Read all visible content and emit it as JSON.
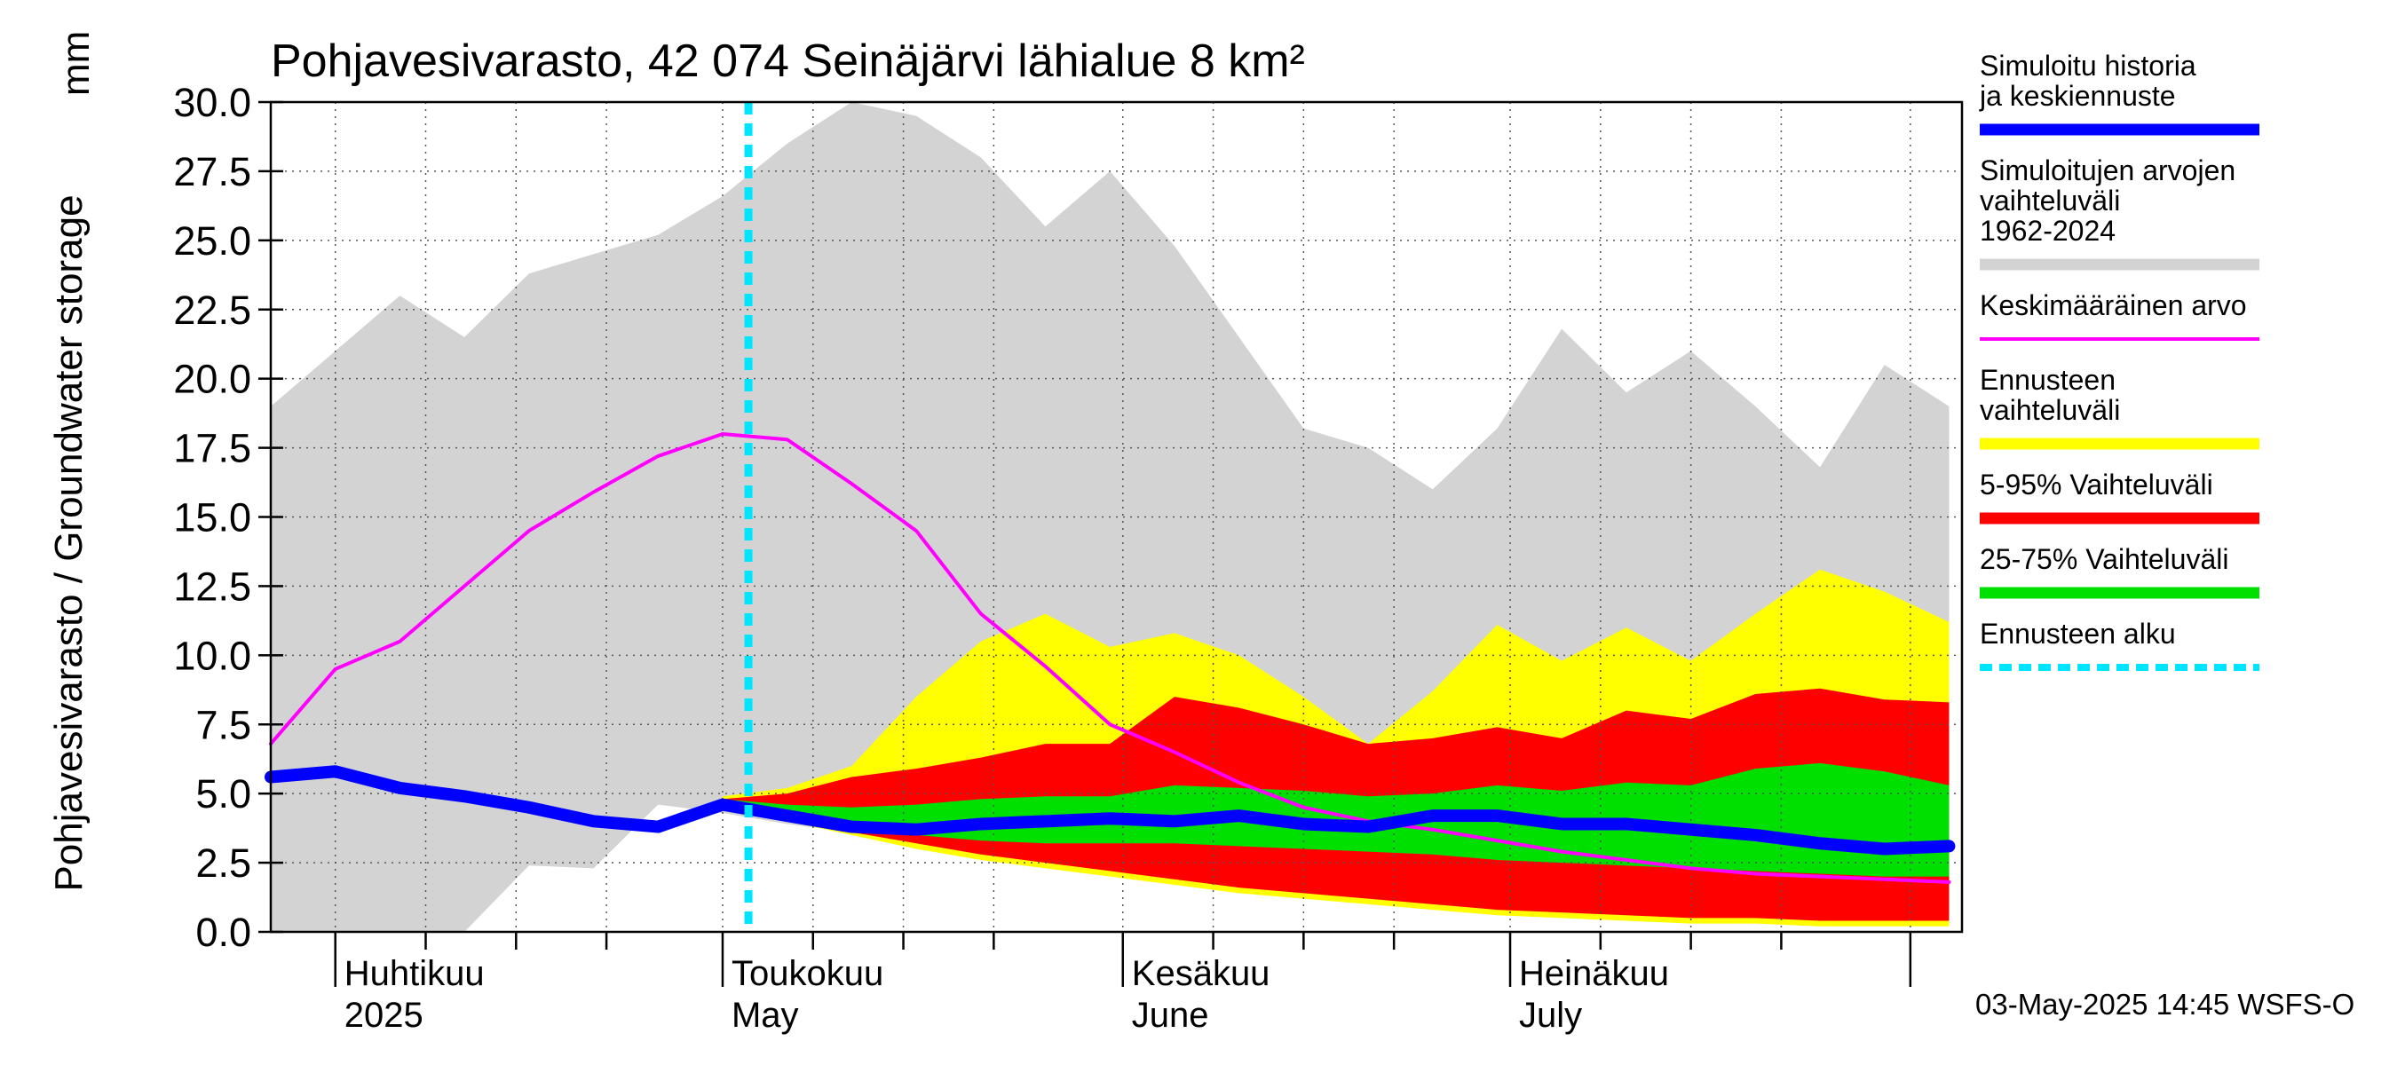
{
  "chart_data": {
    "type": "area",
    "title": "Pohjavesivarasto, 42 074 Seinäjärvi lähialue 8 km²",
    "unit": "mm",
    "ylabel": "Pohjavesivarasto / Groundwater storage",
    "ylim": [
      0,
      30
    ],
    "yticks": [
      "0.0",
      "2.5",
      "5.0",
      "7.5",
      "10.0",
      "12.5",
      "15.0",
      "17.5",
      "20.0",
      "22.5",
      "25.0",
      "27.5",
      "30.0"
    ],
    "xlim": [
      "2025-03-27",
      "2025-08-05"
    ],
    "month_labels": [
      {
        "fi": "Huhtikuu",
        "en": "2025",
        "date": "2025-04-01"
      },
      {
        "fi": "Toukokuu",
        "en": "May",
        "date": "2025-05-01"
      },
      {
        "fi": "Kesäkuu",
        "en": "June",
        "date": "2025-06-01"
      },
      {
        "fi": "Heinäkuu",
        "en": "July",
        "date": "2025-07-01"
      }
    ],
    "grid": true,
    "legend_position": "right",
    "forecast_start": "2025-05-03",
    "x": [
      "2025-03-27",
      "2025-04-01",
      "2025-04-06",
      "2025-04-11",
      "2025-04-16",
      "2025-04-21",
      "2025-04-26",
      "2025-05-01",
      "2025-05-06",
      "2025-05-11",
      "2025-05-16",
      "2025-05-21",
      "2025-05-26",
      "2025-05-31",
      "2025-06-05",
      "2025-06-10",
      "2025-06-15",
      "2025-06-20",
      "2025-06-25",
      "2025-06-30",
      "2025-07-05",
      "2025-07-10",
      "2025-07-15",
      "2025-07-20",
      "2025-07-25",
      "2025-07-30",
      "2025-08-04"
    ],
    "series": [
      {
        "name": "Simuloitujen arvojen vaihteluväli 1962-2024",
        "color": "#d3d3d3",
        "low": [
          0.0,
          0.0,
          0.0,
          0.0,
          2.4,
          2.3,
          4.6,
          4.3,
          3.9,
          3.6,
          3.3,
          3.0,
          2.7,
          2.4,
          2.2,
          2.0,
          1.8,
          1.6,
          1.4,
          1.2,
          1.0,
          0.9,
          0.8,
          0.6,
          0.5,
          0.4,
          0.3
        ],
        "high": [
          19.0,
          21.0,
          23.0,
          21.5,
          23.8,
          24.5,
          25.2,
          26.6,
          28.5,
          30.0,
          29.5,
          28.0,
          25.5,
          27.5,
          24.8,
          21.5,
          18.2,
          17.5,
          16.0,
          18.2,
          21.8,
          19.5,
          21.0,
          19.0,
          16.8,
          20.5,
          19.0
        ]
      },
      {
        "name": "Ennusteen vaihteluväli",
        "color": "#ffff00",
        "low": [
          null,
          null,
          null,
          null,
          null,
          null,
          null,
          4.5,
          4.0,
          3.5,
          3.0,
          2.6,
          2.3,
          2.0,
          1.7,
          1.4,
          1.2,
          1.0,
          0.8,
          0.6,
          0.5,
          0.4,
          0.3,
          0.3,
          0.2,
          0.2,
          0.2
        ],
        "high": [
          null,
          null,
          null,
          null,
          null,
          null,
          null,
          4.9,
          5.2,
          6.0,
          8.5,
          10.5,
          11.5,
          10.3,
          10.8,
          10.0,
          8.5,
          6.8,
          8.7,
          11.1,
          9.8,
          11.0,
          9.8,
          11.5,
          13.1,
          12.3,
          11.2
        ]
      },
      {
        "name": "5-95% Vaihteluväli",
        "color": "#ff0000",
        "low": [
          null,
          null,
          null,
          null,
          null,
          null,
          null,
          4.6,
          4.1,
          3.6,
          3.2,
          2.8,
          2.5,
          2.2,
          1.9,
          1.6,
          1.4,
          1.2,
          1.0,
          0.8,
          0.7,
          0.6,
          0.5,
          0.5,
          0.4,
          0.4,
          0.4
        ],
        "high": [
          null,
          null,
          null,
          null,
          null,
          null,
          null,
          4.8,
          5.0,
          5.6,
          5.9,
          6.3,
          6.8,
          6.8,
          8.5,
          8.1,
          7.5,
          6.8,
          7.0,
          7.4,
          7.0,
          8.0,
          7.7,
          8.6,
          8.8,
          8.4,
          8.3
        ]
      },
      {
        "name": "25-75% Vaihteluväli",
        "color": "#00e000",
        "low": [
          null,
          null,
          null,
          null,
          null,
          null,
          null,
          4.7,
          4.2,
          3.9,
          3.5,
          3.3,
          3.2,
          3.2,
          3.2,
          3.1,
          3.0,
          2.9,
          2.8,
          2.6,
          2.5,
          2.4,
          2.3,
          2.2,
          2.1,
          2.0,
          2.0
        ],
        "high": [
          null,
          null,
          null,
          null,
          null,
          null,
          null,
          4.8,
          4.6,
          4.5,
          4.6,
          4.8,
          4.9,
          4.9,
          5.3,
          5.2,
          5.1,
          4.9,
          5.0,
          5.3,
          5.1,
          5.4,
          5.3,
          5.9,
          6.1,
          5.8,
          5.3
        ]
      },
      {
        "name": "Keskimääräinen arvo",
        "color": "#ff00ff",
        "values": [
          6.8,
          9.5,
          10.5,
          12.5,
          14.5,
          15.9,
          17.2,
          18.0,
          17.8,
          16.2,
          14.5,
          11.5,
          9.6,
          7.5,
          6.5,
          5.4,
          4.5,
          4.0,
          3.7,
          3.3,
          2.9,
          2.6,
          2.3,
          2.1,
          2.0,
          1.9,
          1.8
        ]
      },
      {
        "name": "Simuloitu historia ja keskiennuste",
        "color": "#0000ff",
        "values": [
          5.6,
          5.8,
          5.2,
          4.9,
          4.5,
          4.0,
          3.8,
          4.6,
          4.2,
          3.8,
          3.7,
          3.9,
          4.0,
          4.1,
          4.0,
          4.2,
          3.9,
          3.8,
          4.2,
          4.2,
          3.9,
          3.9,
          3.7,
          3.5,
          3.2,
          3.0,
          3.1
        ]
      },
      {
        "name": "Ennusteen alku",
        "color": "#00e5ff",
        "style": "dotted"
      }
    ]
  },
  "legend": [
    {
      "label": "Simuloitu historia ja keskiennuste",
      "color": "#0000ff",
      "style": "thick"
    },
    {
      "label": "Simuloitujen arvojen vaihteluväli 1962-2024",
      "color": "#d3d3d3",
      "style": "thick"
    },
    {
      "label": "Keskimääräinen arvo",
      "color": "#ff00ff",
      "style": "thin"
    },
    {
      "label": "Ennusteen vaihteluväli",
      "color": "#ffff00",
      "style": "thick"
    },
    {
      "label": "5-95% Vaihteluväli",
      "color": "#ff0000",
      "style": "thick"
    },
    {
      "label": "25-75% Vaihteluväli",
      "color": "#00e000",
      "style": "thick"
    },
    {
      "label": "Ennusteen alku",
      "color": "#00e5ff",
      "style": "dotted"
    }
  ],
  "footer": "03-May-2025 14:45 WSFS-O"
}
